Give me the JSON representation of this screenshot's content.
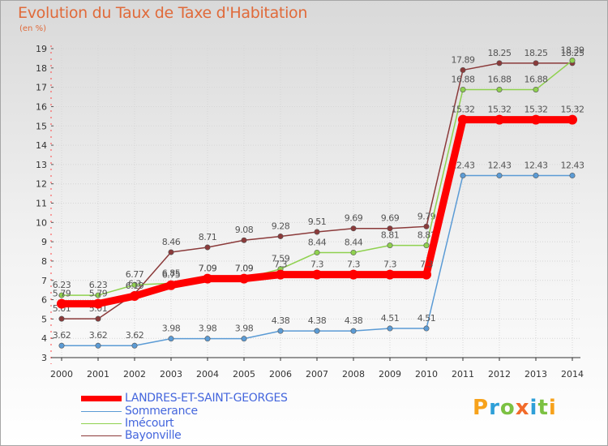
{
  "chart_data": {
    "type": "line",
    "title": "Evolution du Taux de Taxe d'Habitation",
    "ylabel": "(en %)",
    "xlabel": "",
    "ylim": [
      3,
      19
    ],
    "yticks": [
      3,
      4,
      5,
      6,
      7,
      8,
      9,
      10,
      11,
      12,
      13,
      14,
      15,
      16,
      17,
      18,
      19
    ],
    "grid": true,
    "legend_position": "bottom-left",
    "categories": [
      "2000",
      "2001",
      "2002",
      "2003",
      "2004",
      "2005",
      "2006",
      "2007",
      "2008",
      "2009",
      "2010",
      "2011",
      "2012",
      "2013",
      "2014"
    ],
    "series": [
      {
        "name": "Sommerance",
        "color": "#5b9bd5",
        "values": [
          3.62,
          3.62,
          3.62,
          3.98,
          3.98,
          3.98,
          4.38,
          4.38,
          4.38,
          4.51,
          4.51,
          12.43,
          12.43,
          12.43,
          12.43
        ],
        "labels": [
          "3.62",
          "3.62",
          "3.62",
          "3.98",
          "3.98",
          "3.98",
          "4.38",
          "4.38",
          "4.38",
          "4.51",
          "4.51",
          "12.43",
          "12.43",
          "12.43",
          "12.43"
        ]
      },
      {
        "name": "Bayonville",
        "color": "#8b3a3a",
        "values": [
          5.01,
          5.01,
          6.3,
          8.46,
          8.71,
          9.08,
          9.28,
          9.51,
          9.69,
          9.69,
          9.79,
          17.89,
          18.25,
          18.25,
          18.25
        ],
        "labels": [
          "5.01",
          "5.01",
          "6.3",
          "8.46",
          "8.71",
          "9.08",
          "9.28",
          "9.51",
          "9.69",
          "9.69",
          "9.79",
          "17.89",
          "18.25",
          "18.25",
          "18.25"
        ]
      },
      {
        "name": "Imécourt",
        "color": "#8fd14f",
        "values": [
          6.23,
          6.23,
          6.77,
          6.85,
          7.09,
          7.09,
          7.59,
          8.44,
          8.44,
          8.81,
          8.81,
          16.88,
          16.88,
          16.88,
          18.39
        ],
        "labels": [
          "6.23",
          "6.23",
          "6.77",
          "6.85",
          "7.09",
          "7.09",
          "7.59",
          "8.44",
          "8.44",
          "8.81",
          "8.81",
          "16.88",
          "16.88",
          "16.88",
          "18.39"
        ]
      },
      {
        "name": "LANDRES-ET-SAINT-GEORGES",
        "color": "#ff0000",
        "values": [
          5.79,
          5.79,
          6.19,
          6.75,
          7.09,
          7.09,
          7.3,
          7.3,
          7.3,
          7.3,
          7.3,
          15.32,
          15.32,
          15.32,
          15.32
        ],
        "labels": [
          "5.79",
          "5.79",
          "6.19",
          "6.75",
          "7.09",
          "7.09",
          "7.3",
          "7.3",
          "7.3",
          "7.3",
          "7.3",
          "15.32",
          "15.32",
          "15.32",
          "15.32"
        ]
      }
    ]
  },
  "legend": {
    "items": [
      {
        "label": "LANDRES-ET-SAINT-GEORGES",
        "color": "#ff0000",
        "thick": true
      },
      {
        "label": "Sommerance",
        "color": "#5b9bd5",
        "thick": false
      },
      {
        "label": "Imécourt",
        "color": "#8fd14f",
        "thick": false
      },
      {
        "label": "Bayonville",
        "color": "#8b3a3a",
        "thick": false
      }
    ]
  },
  "logo": {
    "letters": [
      "P",
      "r",
      "o",
      "x",
      "i",
      "t",
      "i"
    ],
    "colors": [
      "#f7a21b",
      "#2e9fd8",
      "#7cc142",
      "#f26b2a",
      "#2e9fd8",
      "#7cc142",
      "#f7a21b"
    ]
  }
}
